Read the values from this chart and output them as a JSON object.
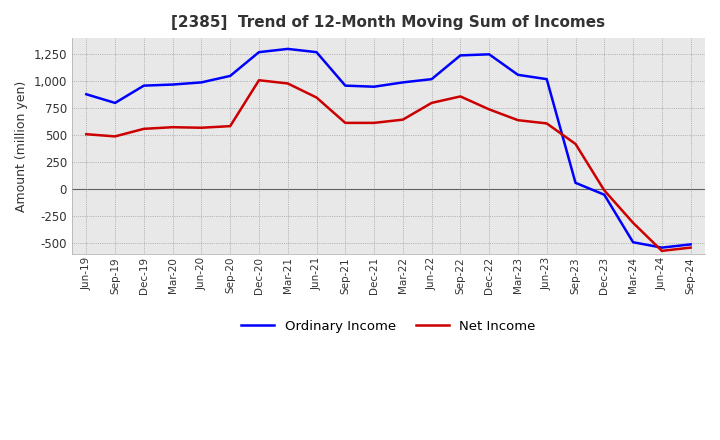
{
  "title": "[2385]  Trend of 12-Month Moving Sum of Incomes",
  "ylabel": "Amount (million yen)",
  "ylim": [
    -600,
    1400
  ],
  "yticks": [
    -500,
    -250,
    0,
    250,
    500,
    750,
    1000,
    1250
  ],
  "bg_color": "#ffffff",
  "plot_bg_color": "#e8e8e8",
  "ordinary_income_color": "#0000ff",
  "net_income_color": "#cc0000",
  "x_labels": [
    "Jun-19",
    "Sep-19",
    "Dec-19",
    "Mar-20",
    "Jun-20",
    "Sep-20",
    "Dec-20",
    "Mar-21",
    "Jun-21",
    "Sep-21",
    "Dec-21",
    "Mar-22",
    "Jun-22",
    "Sep-22",
    "Dec-22",
    "Mar-23",
    "Jun-23",
    "Sep-23",
    "Dec-23",
    "Mar-24",
    "Jun-24",
    "Sep-24"
  ],
  "ordinary_income": [
    880,
    800,
    960,
    970,
    990,
    1050,
    1270,
    1300,
    1270,
    960,
    950,
    990,
    1020,
    1240,
    1250,
    1060,
    1020,
    60,
    -50,
    -490,
    -540,
    -510
  ],
  "net_income": [
    510,
    490,
    560,
    575,
    570,
    585,
    1010,
    980,
    850,
    615,
    615,
    645,
    800,
    860,
    740,
    640,
    610,
    420,
    -10,
    -310,
    -570,
    -540
  ]
}
